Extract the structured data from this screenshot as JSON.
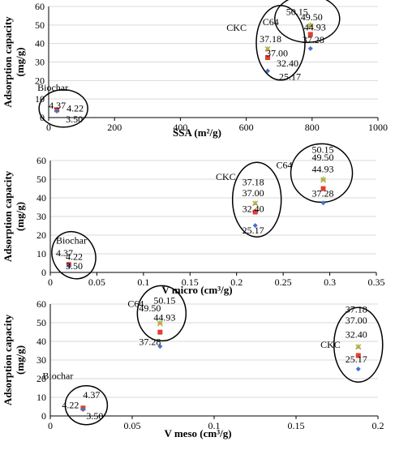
{
  "colors": {
    "blue": "#4472c4",
    "red": "#e0402f",
    "green": "#92d050",
    "tan": "#c8a050",
    "grid": "#d9d9d9",
    "axis": "#000000"
  },
  "chart_data": [
    {
      "type": "scatter",
      "xlabel": "SSA (m²/g)",
      "ylabel": "Adsorption capacity (mg/g)",
      "xlim": [
        0,
        1000
      ],
      "ylim": [
        0,
        60
      ],
      "xticks": [
        "0",
        "200",
        "400",
        "600",
        "800",
        "1000"
      ],
      "yticks": [
        "0",
        "10",
        "20",
        "30",
        "40",
        "50",
        "60"
      ],
      "grid": "horizontal",
      "groups": [
        {
          "name": "Biochar",
          "x": 25,
          "points": [
            {
              "y": 4.37,
              "label": "4.37",
              "color": "#92d050"
            },
            {
              "y": 4.22,
              "label": "4.22",
              "color": "#e0402f"
            },
            {
              "y": 3.5,
              "label": "3.50",
              "color": "#4472c4"
            }
          ]
        },
        {
          "name": "CKC",
          "x": 665,
          "points": [
            {
              "y": 37.18,
              "label": "37.18",
              "color": "#92d050"
            },
            {
              "y": 37.0,
              "label": "37.00",
              "color": "#c8a050"
            },
            {
              "y": 32.4,
              "label": "32.40",
              "color": "#e0402f"
            },
            {
              "y": 25.17,
              "label": "25.17",
              "color": "#4472c4"
            }
          ]
        },
        {
          "name": "C64",
          "x": 795,
          "points": [
            {
              "y": 50.15,
              "label": "50.15",
              "color": "#92d050"
            },
            {
              "y": 49.5,
              "label": "49.50",
              "color": "#c8a050"
            },
            {
              "y": 44.93,
              "label": "44.93",
              "color": "#e0402f"
            },
            {
              "y": 37.28,
              "label": "37.28",
              "color": "#4472c4"
            }
          ]
        }
      ]
    },
    {
      "type": "scatter",
      "xlabel": "V micro (cm³/g)",
      "ylabel": "Adsorption capacity (mg/g)",
      "xlim": [
        0,
        0.35
      ],
      "ylim": [
        0,
        60
      ],
      "xticks": [
        "0",
        "0.05",
        "0.1",
        "0.15",
        "0.2",
        "0.25",
        "0.3",
        "0.35"
      ],
      "yticks": [
        "0",
        "10",
        "20",
        "30",
        "40",
        "50",
        "60"
      ],
      "grid": "horizontal",
      "groups": [
        {
          "name": "Biochar",
          "x": 0.02,
          "points": [
            {
              "y": 4.37,
              "label": "4.37",
              "color": "#92d050"
            },
            {
              "y": 4.22,
              "label": "4.22",
              "color": "#e0402f"
            },
            {
              "y": 3.5,
              "label": "3.50",
              "color": "#4472c4"
            }
          ]
        },
        {
          "name": "CKC",
          "x": 0.22,
          "points": [
            {
              "y": 37.18,
              "label": "37.18",
              "color": "#92d050"
            },
            {
              "y": 37.0,
              "label": "37.00",
              "color": "#c8a050"
            },
            {
              "y": 32.4,
              "label": "32.40",
              "color": "#e0402f"
            },
            {
              "y": 25.17,
              "label": "25.17",
              "color": "#4472c4"
            }
          ]
        },
        {
          "name": "C64",
          "x": 0.293,
          "points": [
            {
              "y": 50.15,
              "label": "50.15",
              "color": "#92d050"
            },
            {
              "y": 49.5,
              "label": "49.50",
              "color": "#c8a050"
            },
            {
              "y": 44.93,
              "label": "44.93",
              "color": "#e0402f"
            },
            {
              "y": 37.28,
              "label": "37.28",
              "color": "#4472c4"
            }
          ]
        }
      ]
    },
    {
      "type": "scatter",
      "xlabel": "V meso (cm³/g)",
      "ylabel": "Adsorption capacity (mg/g)",
      "xlim": [
        0,
        0.2
      ],
      "ylim": [
        0,
        60
      ],
      "xticks": [
        "0",
        "0.05",
        "0.1",
        "0.15",
        "0.2"
      ],
      "yticks": [
        "0",
        "10",
        "20",
        "30",
        "40",
        "50",
        "60"
      ],
      "grid": "horizontal",
      "groups": [
        {
          "name": "Biochar",
          "x": 0.02,
          "points": [
            {
              "y": 4.37,
              "label": "4.37",
              "color": "#92d050"
            },
            {
              "y": 4.22,
              "label": "4.22",
              "color": "#e0402f"
            },
            {
              "y": 3.5,
              "label": "3.50",
              "color": "#4472c4"
            }
          ]
        },
        {
          "name": "C64",
          "x": 0.067,
          "points": [
            {
              "y": 50.15,
              "label": "50.15",
              "color": "#92d050"
            },
            {
              "y": 49.5,
              "label": "49.50",
              "color": "#c8a050"
            },
            {
              "y": 44.93,
              "label": "44.93",
              "color": "#e0402f"
            },
            {
              "y": 37.28,
              "label": "37.28",
              "color": "#4472c4"
            }
          ]
        },
        {
          "name": "CKC",
          "x": 0.188,
          "points": [
            {
              "y": 37.18,
              "label": "37.18",
              "color": "#92d050"
            },
            {
              "y": 37.0,
              "label": "37.00",
              "color": "#c8a050"
            },
            {
              "y": 32.4,
              "label": "32.40",
              "color": "#e0402f"
            },
            {
              "y": 25.17,
              "label": "25.17",
              "color": "#4472c4"
            }
          ]
        }
      ]
    }
  ]
}
